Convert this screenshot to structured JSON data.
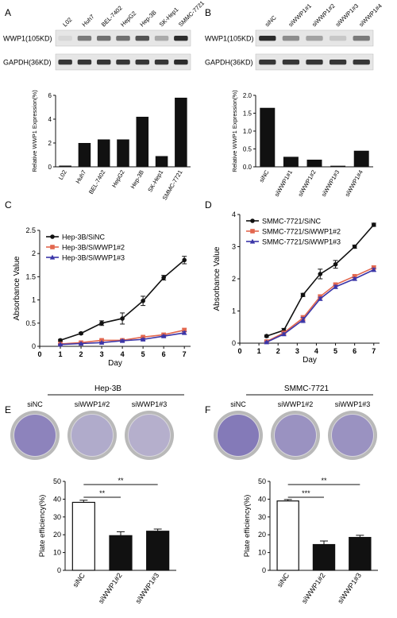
{
  "panels": {
    "A": "A",
    "B": "B",
    "C": "C",
    "D": "D",
    "E": "E",
    "F": "F"
  },
  "colors": {
    "bar": "#111111",
    "black_series": "#111111",
    "red_series": "#e2674f",
    "blue_series": "#3b36a8",
    "dish_outer": "#b9b9b9",
    "dish_inner": "#d8d6dc",
    "stain": "#5a4ca6",
    "blot_bg": "#e6e6e6",
    "band": "#222222"
  },
  "blot_A": {
    "lanes": [
      "L02",
      "Huh7",
      "BEL-7402",
      "HepG2",
      "Hep-3B",
      "SK-Hep1",
      "SMMC-7721"
    ],
    "wwp1_label": "WWP1(105KD)",
    "gapdh_label": "GAPDH(36KD)",
    "wwp1_intensity": [
      0.08,
      0.55,
      0.6,
      0.6,
      0.75,
      0.3,
      0.95
    ],
    "gapdh_intensity": [
      0.9,
      0.9,
      0.9,
      0.9,
      0.9,
      0.9,
      0.95
    ]
  },
  "blot_B": {
    "lanes": [
      "siNC",
      "siWWP1#1",
      "siWWP1#2",
      "siWWP1#3",
      "siWWP1#4"
    ],
    "wwp1_label": "WWP1(105KD)",
    "gapdh_label": "GAPDH(36KD)",
    "wwp1_intensity": [
      0.95,
      0.45,
      0.35,
      0.15,
      0.55
    ],
    "gapdh_intensity": [
      0.9,
      0.9,
      0.9,
      0.9,
      0.9
    ]
  },
  "panel_E": {
    "cell_line": "Hep-3B",
    "dish_labels": [
      "siNC",
      "siWWP1#2",
      "siWWP1#3"
    ],
    "stain_density": [
      0.85,
      0.45,
      0.4
    ]
  },
  "panel_F": {
    "cell_line": "SMMC-7721",
    "dish_labels": [
      "siNC",
      "siWWP1#2",
      "siWWP1#3"
    ],
    "stain_density": [
      0.95,
      0.7,
      0.7
    ]
  },
  "chart_data": [
    {
      "id": "A-bar",
      "type": "bar",
      "title": "",
      "xlabel": "",
      "ylabel": "Relative WWP1 Expression(%)",
      "categories": [
        "L02",
        "Huh7",
        "BEL-7402",
        "HepG2",
        "Hep-3B",
        "SK-Hep1",
        "SMMC-7721"
      ],
      "values": [
        0.1,
        2.0,
        2.3,
        2.3,
        4.2,
        0.9,
        5.8
      ],
      "ylim": [
        0,
        6
      ],
      "yticks": [
        0,
        2,
        4,
        6
      ]
    },
    {
      "id": "B-bar",
      "type": "bar",
      "title": "",
      "xlabel": "",
      "ylabel": "Relative WWP1 Expression(%)",
      "categories": [
        "siNC",
        "siWWP1#1",
        "siWWP1#2",
        "siWWP1#3",
        "siWWP1#4"
      ],
      "values": [
        1.65,
        0.28,
        0.2,
        0.03,
        0.45
      ],
      "ylim": [
        0,
        2.0
      ],
      "yticks": [
        "0.0",
        "0.5",
        "1.0",
        "1.5",
        "2.0"
      ]
    },
    {
      "id": "C-line",
      "type": "line",
      "title": "",
      "xlabel": "Day",
      "ylabel": "Absorbance Value",
      "x": [
        1,
        2,
        3,
        4,
        5,
        6,
        7
      ],
      "xticks": [
        "0",
        "1",
        "2",
        "3",
        "4",
        "5",
        "6",
        "7"
      ],
      "xlim": [
        0,
        7.3
      ],
      "ylim": [
        0,
        2.5
      ],
      "yticks": [
        "0",
        "0.5",
        "1",
        "1.5",
        "2",
        "2.5"
      ],
      "legend": "top-left",
      "series": [
        {
          "name": "Hep-3B/SiNC",
          "values": [
            0.13,
            0.28,
            0.5,
            0.6,
            0.98,
            1.48,
            1.86
          ],
          "err": [
            0.02,
            0.02,
            0.05,
            0.12,
            0.1,
            0.05,
            0.08
          ]
        },
        {
          "name": "Hep-3B/SiWWP1#2",
          "values": [
            0.05,
            0.08,
            0.13,
            0.13,
            0.2,
            0.25,
            0.35
          ],
          "err": [
            0.01,
            0.01,
            0.02,
            0.02,
            0.02,
            0.03,
            0.04
          ]
        },
        {
          "name": "Hep-3B/SiWWP1#3",
          "values": [
            0.04,
            0.06,
            0.08,
            0.12,
            0.15,
            0.22,
            0.29
          ],
          "err": [
            0.01,
            0.01,
            0.01,
            0.02,
            0.02,
            0.02,
            0.03
          ]
        }
      ]
    },
    {
      "id": "D-line",
      "type": "line",
      "title": "",
      "xlabel": "Day",
      "ylabel": "Absorbance Value",
      "x": [
        1.4,
        2.3,
        3.3,
        4.2,
        5,
        6,
        7
      ],
      "xticks": [
        "0",
        "1",
        "2",
        "3",
        "4",
        "5",
        "6",
        "7"
      ],
      "xlim": [
        0,
        7.3
      ],
      "ylim": [
        0,
        4
      ],
      "yticks": [
        "0",
        "1",
        "2",
        "3",
        "4"
      ],
      "legend": "top-left",
      "series": [
        {
          "name": "SMMC-7721/SiNC",
          "values": [
            0.22,
            0.4,
            1.5,
            2.15,
            2.45,
            3.0,
            3.68
          ],
          "err": [
            0.03,
            0.06,
            0.05,
            0.15,
            0.12,
            0.05,
            0.05
          ]
        },
        {
          "name": "SMMC-7721/SiWWP1#2",
          "values": [
            0.05,
            0.32,
            0.78,
            1.45,
            1.82,
            2.08,
            2.35
          ],
          "err": [
            0.02,
            0.04,
            0.08,
            0.05,
            0.05,
            0.04,
            0.05
          ]
        },
        {
          "name": "SMMC-7721/SiWWP1#3",
          "values": [
            0.03,
            0.28,
            0.72,
            1.38,
            1.75,
            2.0,
            2.28
          ],
          "err": [
            0.02,
            0.04,
            0.08,
            0.05,
            0.05,
            0.04,
            0.05
          ]
        }
      ]
    },
    {
      "id": "E-bar",
      "type": "bar",
      "title": "",
      "xlabel": "",
      "ylabel": "Plate efficiency(%)",
      "categories": [
        "siNC",
        "siWWP1#2",
        "siWWP1#3"
      ],
      "values": [
        38.2,
        19.5,
        22.0
      ],
      "err": [
        1.2,
        2.2,
        1.2
      ],
      "fills": [
        "white",
        "black",
        "black"
      ],
      "ylim": [
        0,
        50
      ],
      "yticks": [
        0,
        10,
        20,
        30,
        40,
        50
      ],
      "significance": [
        {
          "from": 0,
          "to": 1,
          "label": "**"
        },
        {
          "from": 0,
          "to": 2,
          "label": "**"
        }
      ]
    },
    {
      "id": "F-bar",
      "type": "bar",
      "title": "",
      "xlabel": "",
      "ylabel": "Plate efficiency(%)",
      "categories": [
        "siNC",
        "siWWP1#2",
        "siWWP1#3"
      ],
      "values": [
        39.0,
        14.5,
        18.5
      ],
      "err": [
        0.8,
        2.0,
        1.2
      ],
      "fills": [
        "white",
        "black",
        "black"
      ],
      "ylim": [
        0,
        50
      ],
      "yticks": [
        0,
        10,
        20,
        30,
        40,
        50
      ],
      "significance": [
        {
          "from": 0,
          "to": 1,
          "label": "***"
        },
        {
          "from": 0,
          "to": 2,
          "label": "**"
        }
      ]
    }
  ]
}
